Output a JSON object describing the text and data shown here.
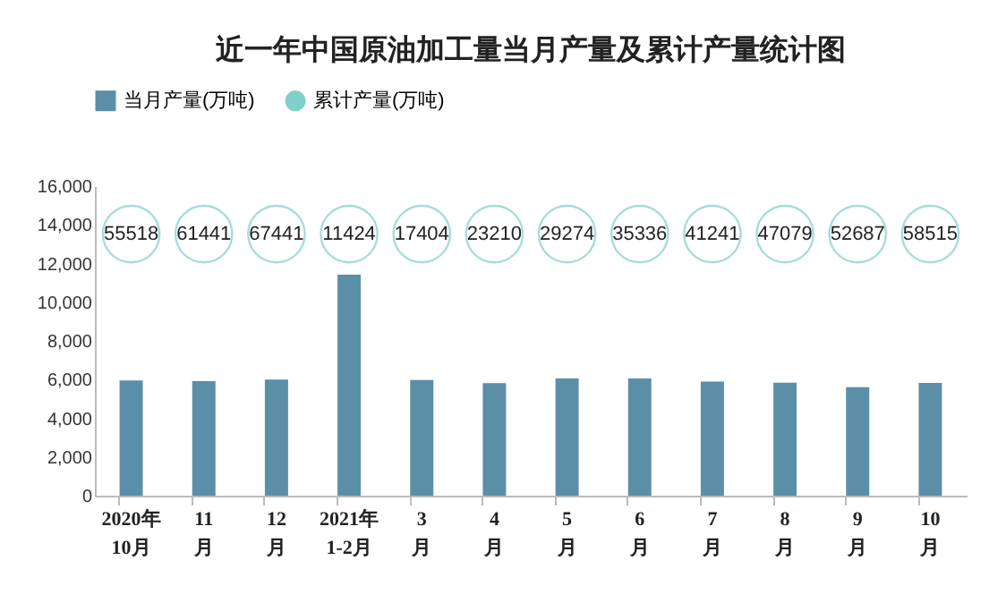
{
  "chart_data": {
    "type": "bar",
    "title": "近一年中国原油加工量当月产量及累计产量统计图",
    "categories": [
      "2020年\n10月",
      "11\n月",
      "12\n月",
      "2021年\n1-2月",
      "3\n月",
      "4\n月",
      "5\n月",
      "6\n月",
      "7\n月",
      "8\n月",
      "9\n月",
      "10\n月"
    ],
    "series": [
      {
        "name": "当月产量(万吨)",
        "color": "#5b8fa8",
        "values": [
          5950,
          5920,
          6000,
          11420,
          5980,
          5810,
          6060,
          6060,
          5900,
          5840,
          5610,
          5830
        ]
      },
      {
        "name": "累计产量(万吨)",
        "type": "other",
        "color": "#7fd0c8",
        "values": [
          null,
          null,
          null,
          null,
          null,
          null,
          null,
          null,
          null,
          null,
          null,
          null
        ],
        "value_labels": [
          "55518",
          "61441",
          "67441",
          "11424",
          "17404",
          "23210",
          "29274",
          "35336",
          "41241",
          "47079",
          "52687",
          "58515"
        ]
      }
    ],
    "ylim": [
      0,
      16000
    ],
    "yticks": [
      0,
      {
        "value": 2000,
        "label": "2,000"
      },
      {
        "value": 4000,
        "label": "4,000"
      },
      {
        "value": 6000,
        "label": "6,000"
      },
      {
        "value": 8000,
        "label": "8,000"
      },
      {
        "value": 10000,
        "label": "10,000"
      },
      {
        "value": 12000,
        "label": "12,000"
      },
      {
        "value": 14000,
        "label": "14,000"
      },
      {
        "value": 16000,
        "label": "16,000"
      }
    ],
    "grid": false,
    "legend": "top"
  }
}
